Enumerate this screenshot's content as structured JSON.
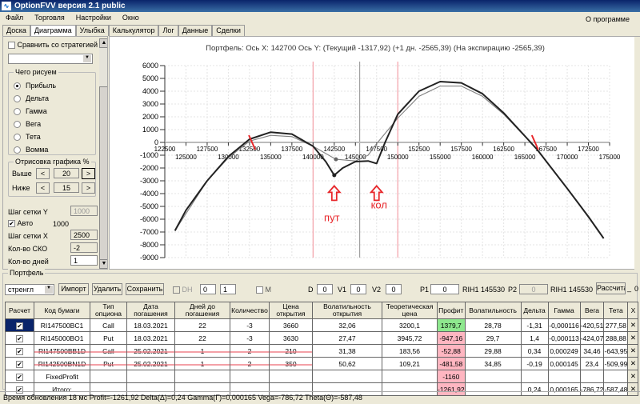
{
  "app": {
    "title": "OptionFVV версия 2.1 public"
  },
  "menu": {
    "items": [
      "Файл",
      "Торговля",
      "Настройки",
      "Окно"
    ],
    "about": "О программе"
  },
  "tabs": [
    {
      "label": "Доска"
    },
    {
      "label": "Диаграмма",
      "active": true
    },
    {
      "label": "Улыбка"
    },
    {
      "label": "Калькулятор"
    },
    {
      "label": "Лог"
    },
    {
      "label": "Данные"
    },
    {
      "label": "Сделки"
    }
  ],
  "left": {
    "compare_label": "Сравнить со стратегией",
    "compare_checked": false,
    "compare_select": "",
    "draw_group": "Чего рисуем",
    "draw_options": [
      "Прибыль",
      "Дельта",
      "Гамма",
      "Вега",
      "Тета",
      "Вомма"
    ],
    "draw_selected": "Прибыль",
    "clip_group": "Отрисовка графика %",
    "above_label": "Выше",
    "above_value": "20",
    "below_label": "Ниже",
    "below_value": "15",
    "dec": "<",
    "inc": ">",
    "grid_y_label": "Шаг сетки Y",
    "grid_y_value": "1000",
    "auto_label": "Авто",
    "auto_checked": true,
    "auto_value": "1000",
    "grid_x_label": "Шаг сетки X",
    "grid_x_value": "2500",
    "sko_label": "Кол-во СКО",
    "sko_value": "-2",
    "days_label": "Кол-во дней",
    "days_value": "1"
  },
  "chart_data": {
    "type": "line",
    "title": "Портфель: Ось X: 142700 Ось Y:  (Текущий -1317,92)  (+1 дн. -2565,39)  (На экспирацию -2565,39)",
    "xlim": [
      122500,
      175000
    ],
    "ylim": [
      -9000,
      6000
    ],
    "x_ticks_top": [
      122500,
      127500,
      132500,
      137500,
      142500,
      147500,
      152500,
      157500,
      162500,
      167500,
      172500
    ],
    "x_ticks_bottom": [
      125000,
      130000,
      135000,
      140000,
      145000,
      150000,
      155000,
      160000,
      165000,
      170000,
      175000
    ],
    "y_ticks": [
      6000,
      5000,
      4000,
      3000,
      2000,
      1000,
      0,
      -1000,
      -2000,
      -3000,
      -4000,
      -5000,
      -6000,
      -7000,
      -8000,
      -9000
    ],
    "grid": true,
    "series": [
      {
        "color": "#222222",
        "x": [
          123700,
          125000,
          127500,
          130000,
          132500,
          135000,
          137500,
          140000,
          141500,
          142500,
          143500,
          145000,
          146500,
          147500,
          148500,
          150000,
          152500,
          155000,
          157500,
          160000,
          162500,
          165000,
          166500,
          170000,
          172500,
          174300
        ],
        "y": [
          -6900,
          -5300,
          -3000,
          -1100,
          250,
          800,
          650,
          -300,
          -1500,
          -2565,
          -2000,
          -1500,
          -1450,
          -1650,
          0,
          2200,
          4000,
          4750,
          4650,
          3800,
          2300,
          500,
          -600,
          -3600,
          -5800,
          -7500
        ]
      },
      {
        "color": "#808080",
        "x": [
          123700,
          127500,
          130000,
          132500,
          135000,
          137500,
          140000,
          142700,
          145000,
          146500,
          147500,
          150000,
          152500,
          155000,
          157500,
          160000,
          162500,
          165000,
          166500,
          170000,
          174300
        ],
        "y": [
          -6900,
          -3000,
          -1200,
          100,
          550,
          450,
          -300,
          -1318,
          -1450,
          -1000,
          -100,
          1900,
          3600,
          4400,
          4400,
          3600,
          2200,
          450,
          -600,
          -3600,
          -7500
        ]
      }
    ],
    "current_point": {
      "x": 142700,
      "y": -1318
    },
    "breakeven_marks": [
      132800,
      166200
    ],
    "vlines": [
      {
        "x": 140000,
        "color": "#f4a0a8"
      },
      {
        "x": 145500,
        "color": "#a0a0a0"
      },
      {
        "x": 150000,
        "color": "#f4a0a8"
      }
    ],
    "annotations": [
      {
        "text": "пут",
        "x": 142500,
        "color": "#e8262a"
      },
      {
        "text": "кол",
        "x": 147500,
        "color": "#e8262a"
      }
    ]
  },
  "portfolio": {
    "group": "Портфель",
    "strategy": "стренгл",
    "import": "Импорт",
    "delete": "Удалить",
    "save": "Сохранить",
    "dh_label": "DH",
    "spin1": "0",
    "spin2": "1",
    "m_label": "M",
    "d_label": "D",
    "d": "0",
    "v1_label": "V1",
    "v1": "0",
    "v2_label": "V2",
    "v2": "0",
    "p1_label": "P1",
    "p1": "0",
    "p1_sec": "RIH1 145530",
    "p2_label": "P2",
    "p2": "0",
    "p2_sec": "RIH1 145530",
    "calc": "Рассчита",
    "minus": "_",
    "extra": "0",
    "columns": [
      "Расчет",
      "Код бумаги",
      "Тип опциона",
      "Дата погашения",
      "Дней до погашения",
      "Количество",
      "Цена открытия",
      "Волатильность открытия",
      "Теоретическая цена",
      "Профит",
      "Волатильность",
      "Дельта",
      "Гамма",
      "Вега",
      "Тета",
      "X"
    ],
    "rows": [
      {
        "code": "RI147500BC1",
        "type": "Call",
        "date": "18.03.2021",
        "days": "22",
        "qty": "-3",
        "price": "3660",
        "vol_open": "32,06",
        "theo": "3200,1",
        "profit": "1379,7",
        "profit_color": "green",
        "vol": "28,78",
        "delta": "-1,31",
        "gamma": "-0,000116",
        "vega": "-420,51",
        "theta": "277,58",
        "strike": false
      },
      {
        "code": "RI145000BO1",
        "type": "Put",
        "date": "18.03.2021",
        "days": "22",
        "qty": "-3",
        "price": "3630",
        "vol_open": "27,47",
        "theo": "3945,72",
        "profit": "-947,16",
        "profit_color": "pink",
        "vol": "29,7",
        "delta": "1,4",
        "gamma": "-0,000113",
        "vega": "-424,07",
        "theta": "288,88",
        "strike": false
      },
      {
        "code": "RI147500BB1D",
        "type": "Call",
        "date": "25.02.2021",
        "days": "1",
        "qty": "2",
        "price": "210",
        "vol_open": "31,38",
        "theo": "183,56",
        "profit": "-52,88",
        "profit_color": "pink",
        "vol": "29,88",
        "delta": "0,34",
        "gamma": "0,000249",
        "vega": "34,46",
        "theta": "-643,95",
        "strike": true
      },
      {
        "code": "RI142500BN1D",
        "type": "Put",
        "date": "25.02.2021",
        "days": "1",
        "qty": "2",
        "price": "350",
        "vol_open": "50,62",
        "theo": "109,21",
        "profit": "-481,58",
        "profit_color": "pink",
        "vol": "34,85",
        "delta": "-0,19",
        "gamma": "0,000145",
        "vega": "23,4",
        "theta": "-509,99",
        "strike": true
      },
      {
        "code": "FixedProfit",
        "type": "",
        "date": "",
        "days": "",
        "qty": "",
        "price": "",
        "vol_open": "",
        "theo": "",
        "profit": "-1160",
        "profit_color": "pink",
        "vol": "",
        "delta": "",
        "gamma": "",
        "vega": "",
        "theta": "",
        "strike": false
      },
      {
        "code": "Итого:",
        "type": "",
        "date": "",
        "days": "",
        "qty": "",
        "price": "",
        "vol_open": "",
        "theo": "",
        "profit": "-1261,92",
        "profit_color": "pink",
        "vol": "",
        "delta": "0,24",
        "gamma": "0,000165",
        "vega": "-786,72",
        "theta": "-587,48",
        "strike": false
      }
    ],
    "remove_glyph": "✕",
    "check_glyph": "✔"
  },
  "status": "Время обновления 18 мс  Profit=-1261,92 Delta(Δ)=0,24 Gamma(Γ)=0,000165 Vega=-786,72 Theta(Θ)=-587,48"
}
